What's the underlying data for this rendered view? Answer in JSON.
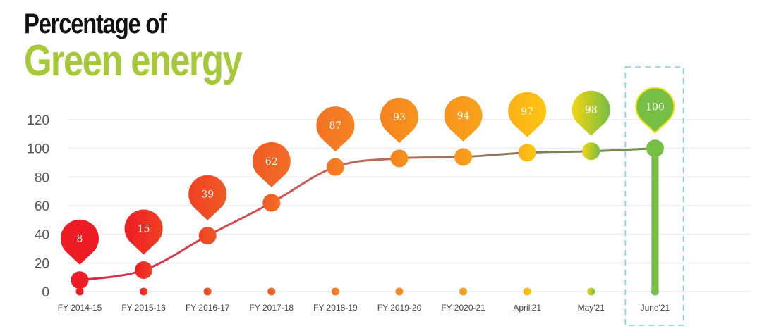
{
  "title": {
    "line1": "Percentage of",
    "line2": "Green energy"
  },
  "colors": {
    "title_dark": "#111111",
    "title_green": "#a6c93a",
    "highlight_box": "#7fd0dd",
    "grid": "#ececec"
  },
  "chart_data": {
    "type": "line",
    "title": "Percentage of Green energy",
    "xlabel": "",
    "ylabel": "",
    "ylim": [
      0,
      120
    ],
    "yticks": [
      0,
      20,
      40,
      60,
      80,
      100,
      120
    ],
    "grid": true,
    "categories": [
      "FY 2014-15",
      "FY 2015-16",
      "FY 2016-17",
      "FY 2017-18",
      "FY 2018-19",
      "FY 2019-20",
      "FY 2020-21",
      "April'21",
      "May'21",
      "June'21"
    ],
    "values": [
      8,
      15,
      39,
      62,
      87,
      93,
      94,
      97,
      98,
      100
    ],
    "data_labels": [
      "8",
      "15",
      "39",
      "62",
      "87",
      "93",
      "94",
      "97",
      "98",
      "100"
    ],
    "marker_colors": [
      [
        "#ed1c24",
        "#ed1c24"
      ],
      [
        "#ed1c24",
        "#ef4123"
      ],
      [
        "#ef4123",
        "#f15a24"
      ],
      [
        "#f15a24",
        "#f26d26"
      ],
      [
        "#f37326",
        "#f58220"
      ],
      [
        "#f58220",
        "#f7941d"
      ],
      [
        "#f7941d",
        "#f9a21b"
      ],
      [
        "#fbb018",
        "#fdc613"
      ],
      [
        "#f4d312",
        "#74bf44"
      ],
      [
        "#74bf44",
        "#74bf44"
      ]
    ],
    "highlight": {
      "category": "June'21",
      "style": "dashed-box"
    }
  }
}
